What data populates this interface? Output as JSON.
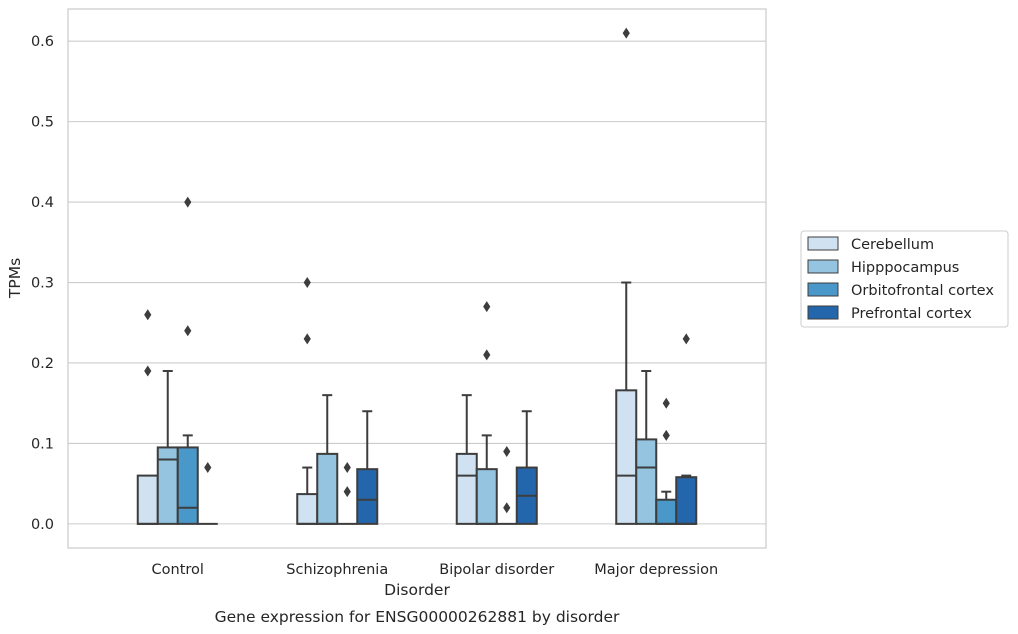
{
  "chart_data": {
    "type": "boxplot",
    "caption": "Gene expression for ENSG00000262881 by disorder",
    "xlabel": "Disorder",
    "ylabel": "TPMs",
    "ylim": [
      -0.03,
      0.64
    ],
    "yticks": [
      0.0,
      0.1,
      0.2,
      0.3,
      0.4,
      0.5,
      0.6
    ],
    "ytick_labels": [
      "0.0",
      "0.1",
      "0.2",
      "0.3",
      "0.4",
      "0.5",
      "0.6"
    ],
    "grid": "horizontal",
    "legend_position": "right",
    "categories": [
      "Control",
      "Schizophrenia",
      "Bipolar disorder",
      "Major depression"
    ],
    "series": [
      {
        "name": "Cerebellum",
        "color": "#d0e1f2",
        "boxes": [
          {
            "whislo": 0.0,
            "q1": 0.0,
            "med": 0.0,
            "q3": 0.06,
            "whishi": 0.06,
            "fliers": [
              0.19,
              0.26
            ]
          },
          {
            "whislo": 0.0,
            "q1": 0.0,
            "med": 0.0,
            "q3": 0.037,
            "whishi": 0.07,
            "fliers": [
              0.23,
              0.3
            ]
          },
          {
            "whislo": 0.0,
            "q1": 0.0,
            "med": 0.06,
            "q3": 0.087,
            "whishi": 0.16,
            "fliers": []
          },
          {
            "whislo": 0.0,
            "q1": 0.0,
            "med": 0.06,
            "q3": 0.166,
            "whishi": 0.3,
            "fliers": [
              0.61
            ]
          }
        ]
      },
      {
        "name": "Hipppocampus",
        "color": "#94c4df",
        "boxes": [
          {
            "whislo": 0.0,
            "q1": 0.0,
            "med": 0.08,
            "q3": 0.095,
            "whishi": 0.19,
            "fliers": []
          },
          {
            "whislo": 0.0,
            "q1": 0.0,
            "med": 0.0,
            "q3": 0.087,
            "whishi": 0.16,
            "fliers": []
          },
          {
            "whislo": 0.0,
            "q1": 0.0,
            "med": 0.0,
            "q3": 0.068,
            "whishi": 0.11,
            "fliers": [
              0.21,
              0.27
            ]
          },
          {
            "whislo": 0.0,
            "q1": 0.0,
            "med": 0.07,
            "q3": 0.105,
            "whishi": 0.19,
            "fliers": []
          }
        ]
      },
      {
        "name": "Orbitofrontal cortex",
        "color": "#4a98c9",
        "boxes": [
          {
            "whislo": 0.0,
            "q1": 0.0,
            "med": 0.02,
            "q3": 0.095,
            "whishi": 0.11,
            "fliers": [
              0.24,
              0.4
            ]
          },
          {
            "whislo": 0.0,
            "q1": 0.0,
            "med": 0.0,
            "q3": 0.0,
            "whishi": 0.0,
            "fliers": [
              0.04,
              0.07
            ]
          },
          {
            "whislo": 0.0,
            "q1": 0.0,
            "med": 0.0,
            "q3": 0.0,
            "whishi": 0.0,
            "fliers": [
              0.02,
              0.09
            ]
          },
          {
            "whislo": 0.0,
            "q1": 0.0,
            "med": 0.0,
            "q3": 0.03,
            "whishi": 0.04,
            "fliers": [
              0.11,
              0.15
            ]
          }
        ]
      },
      {
        "name": "Prefrontal cortex",
        "color": "#2366ac",
        "boxes": [
          {
            "whislo": 0.0,
            "q1": 0.0,
            "med": 0.0,
            "q3": 0.0,
            "whishi": 0.0,
            "fliers": [
              0.07
            ]
          },
          {
            "whislo": 0.0,
            "q1": 0.0,
            "med": 0.03,
            "q3": 0.068,
            "whishi": 0.14,
            "fliers": []
          },
          {
            "whislo": 0.0,
            "q1": 0.0,
            "med": 0.035,
            "q3": 0.07,
            "whishi": 0.14,
            "fliers": []
          },
          {
            "whislo": 0.0,
            "q1": 0.0,
            "med": 0.0,
            "q3": 0.058,
            "whishi": 0.06,
            "fliers": [
              0.23
            ]
          }
        ]
      }
    ]
  }
}
